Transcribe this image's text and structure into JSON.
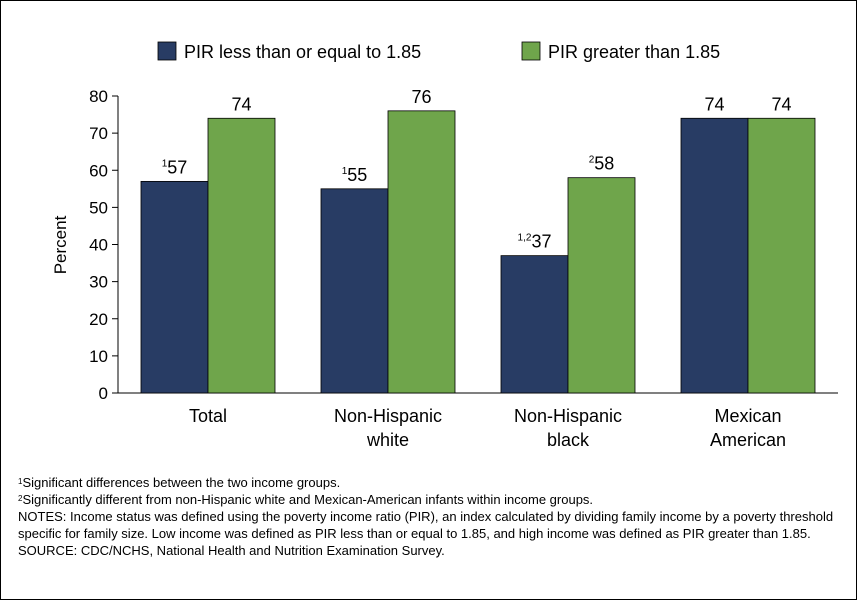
{
  "colors": {
    "low": "#283c64",
    "high": "#6fa54b"
  },
  "chart_data": {
    "type": "bar",
    "title": "",
    "xlabel": "",
    "ylabel": "Percent",
    "ylim": [
      0,
      80
    ],
    "yticks": [
      0,
      10,
      20,
      30,
      40,
      50,
      60,
      70,
      80
    ],
    "categories": [
      [
        "Total"
      ],
      [
        "Non-Hispanic",
        "white"
      ],
      [
        "Non-Hispanic",
        "black"
      ],
      [
        "Mexican",
        "American"
      ]
    ],
    "series": [
      {
        "name": "PIR less than or equal to 1.85",
        "values": [
          57,
          55,
          37,
          74
        ],
        "superscripts": [
          "1",
          "1",
          "1,2",
          ""
        ]
      },
      {
        "name": "PIR greater than 1.85",
        "values": [
          74,
          76,
          58,
          74
        ],
        "superscripts": [
          "",
          "",
          "2",
          ""
        ]
      }
    ],
    "legend_position": "top"
  },
  "footnotes": {
    "note1_sup": "1",
    "note1": "Significant differences between the two income groups.",
    "note2_sup": "2",
    "note2": "Significantly different from non-Hispanic white and Mexican-American infants within income groups.",
    "notes": "NOTES: Income status was defined using the poverty income ratio (PIR), an index calculated by dividing family income by a poverty threshold specific for family size.  Low income was defined as PIR less than or equal to 1.85, and high income was defined as PIR greater than 1.85.",
    "source": "SOURCE: CDC/NCHS, National Health and Nutrition Examination Survey."
  }
}
